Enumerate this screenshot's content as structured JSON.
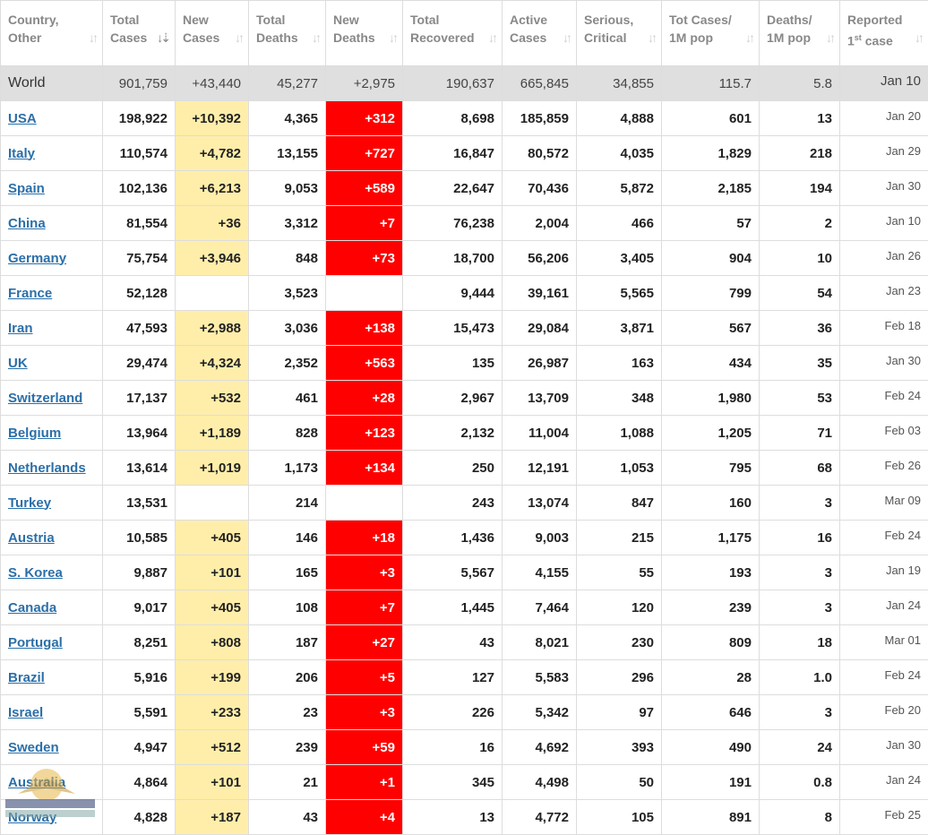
{
  "table": {
    "headers": [
      {
        "key": "country",
        "label": "Country,\nOther"
      },
      {
        "key": "total_cases",
        "label": "Total\nCases",
        "sorted": true
      },
      {
        "key": "new_cases",
        "label": "New\nCases"
      },
      {
        "key": "total_deaths",
        "label": "Total\nDeaths"
      },
      {
        "key": "new_deaths",
        "label": "New\nDeaths"
      },
      {
        "key": "total_recovered",
        "label": "Total\nRecovered"
      },
      {
        "key": "active_cases",
        "label": "Active\nCases"
      },
      {
        "key": "serious_critical",
        "label": "Serious,\nCritical"
      },
      {
        "key": "tot_cases_1m",
        "label": "Tot Cases/\n1M pop"
      },
      {
        "key": "deaths_1m",
        "label": "Deaths/\n1M pop"
      },
      {
        "key": "reported_first",
        "label": "Reported\n1st case"
      }
    ],
    "sort_icon": "sort-arrows-icon",
    "world": {
      "country": "World",
      "total_cases": "901,759",
      "new_cases": "+43,440",
      "total_deaths": "45,277",
      "new_deaths": "+2,975",
      "total_recovered": "190,637",
      "active_cases": "665,845",
      "serious_critical": "34,855",
      "tot_cases_1m": "115.7",
      "deaths_1m": "5.8",
      "reported_first": "Jan 10"
    },
    "rows": [
      {
        "country": "USA",
        "total_cases": "198,922",
        "new_cases": "+10,392",
        "total_deaths": "4,365",
        "new_deaths": "+312",
        "total_recovered": "8,698",
        "active_cases": "185,859",
        "serious_critical": "4,888",
        "tot_cases_1m": "601",
        "deaths_1m": "13",
        "reported_first": "Jan 20"
      },
      {
        "country": "Italy",
        "total_cases": "110,574",
        "new_cases": "+4,782",
        "total_deaths": "13,155",
        "new_deaths": "+727",
        "total_recovered": "16,847",
        "active_cases": "80,572",
        "serious_critical": "4,035",
        "tot_cases_1m": "1,829",
        "deaths_1m": "218",
        "reported_first": "Jan 29"
      },
      {
        "country": "Spain",
        "total_cases": "102,136",
        "new_cases": "+6,213",
        "total_deaths": "9,053",
        "new_deaths": "+589",
        "total_recovered": "22,647",
        "active_cases": "70,436",
        "serious_critical": "5,872",
        "tot_cases_1m": "2,185",
        "deaths_1m": "194",
        "reported_first": "Jan 30"
      },
      {
        "country": "China",
        "total_cases": "81,554",
        "new_cases": "+36",
        "total_deaths": "3,312",
        "new_deaths": "+7",
        "total_recovered": "76,238",
        "active_cases": "2,004",
        "serious_critical": "466",
        "tot_cases_1m": "57",
        "deaths_1m": "2",
        "reported_first": "Jan 10"
      },
      {
        "country": "Germany",
        "total_cases": "75,754",
        "new_cases": "+3,946",
        "total_deaths": "848",
        "new_deaths": "+73",
        "total_recovered": "18,700",
        "active_cases": "56,206",
        "serious_critical": "3,405",
        "tot_cases_1m": "904",
        "deaths_1m": "10",
        "reported_first": "Jan 26"
      },
      {
        "country": "France",
        "total_cases": "52,128",
        "new_cases": "",
        "total_deaths": "3,523",
        "new_deaths": "",
        "total_recovered": "9,444",
        "active_cases": "39,161",
        "serious_critical": "5,565",
        "tot_cases_1m": "799",
        "deaths_1m": "54",
        "reported_first": "Jan 23"
      },
      {
        "country": "Iran",
        "total_cases": "47,593",
        "new_cases": "+2,988",
        "total_deaths": "3,036",
        "new_deaths": "+138",
        "total_recovered": "15,473",
        "active_cases": "29,084",
        "serious_critical": "3,871",
        "tot_cases_1m": "567",
        "deaths_1m": "36",
        "reported_first": "Feb 18"
      },
      {
        "country": "UK",
        "total_cases": "29,474",
        "new_cases": "+4,324",
        "total_deaths": "2,352",
        "new_deaths": "+563",
        "total_recovered": "135",
        "active_cases": "26,987",
        "serious_critical": "163",
        "tot_cases_1m": "434",
        "deaths_1m": "35",
        "reported_first": "Jan 30"
      },
      {
        "country": "Switzerland",
        "total_cases": "17,137",
        "new_cases": "+532",
        "total_deaths": "461",
        "new_deaths": "+28",
        "total_recovered": "2,967",
        "active_cases": "13,709",
        "serious_critical": "348",
        "tot_cases_1m": "1,980",
        "deaths_1m": "53",
        "reported_first": "Feb 24"
      },
      {
        "country": "Belgium",
        "total_cases": "13,964",
        "new_cases": "+1,189",
        "total_deaths": "828",
        "new_deaths": "+123",
        "total_recovered": "2,132",
        "active_cases": "11,004",
        "serious_critical": "1,088",
        "tot_cases_1m": "1,205",
        "deaths_1m": "71",
        "reported_first": "Feb 03"
      },
      {
        "country": "Netherlands",
        "total_cases": "13,614",
        "new_cases": "+1,019",
        "total_deaths": "1,173",
        "new_deaths": "+134",
        "total_recovered": "250",
        "active_cases": "12,191",
        "serious_critical": "1,053",
        "tot_cases_1m": "795",
        "deaths_1m": "68",
        "reported_first": "Feb 26"
      },
      {
        "country": "Turkey",
        "total_cases": "13,531",
        "new_cases": "",
        "total_deaths": "214",
        "new_deaths": "",
        "total_recovered": "243",
        "active_cases": "13,074",
        "serious_critical": "847",
        "tot_cases_1m": "160",
        "deaths_1m": "3",
        "reported_first": "Mar 09"
      },
      {
        "country": "Austria",
        "total_cases": "10,585",
        "new_cases": "+405",
        "total_deaths": "146",
        "new_deaths": "+18",
        "total_recovered": "1,436",
        "active_cases": "9,003",
        "serious_critical": "215",
        "tot_cases_1m": "1,175",
        "deaths_1m": "16",
        "reported_first": "Feb 24"
      },
      {
        "country": "S. Korea",
        "total_cases": "9,887",
        "new_cases": "+101",
        "total_deaths": "165",
        "new_deaths": "+3",
        "total_recovered": "5,567",
        "active_cases": "4,155",
        "serious_critical": "55",
        "tot_cases_1m": "193",
        "deaths_1m": "3",
        "reported_first": "Jan 19"
      },
      {
        "country": "Canada",
        "total_cases": "9,017",
        "new_cases": "+405",
        "total_deaths": "108",
        "new_deaths": "+7",
        "total_recovered": "1,445",
        "active_cases": "7,464",
        "serious_critical": "120",
        "tot_cases_1m": "239",
        "deaths_1m": "3",
        "reported_first": "Jan 24"
      },
      {
        "country": "Portugal",
        "total_cases": "8,251",
        "new_cases": "+808",
        "total_deaths": "187",
        "new_deaths": "+27",
        "total_recovered": "43",
        "active_cases": "8,021",
        "serious_critical": "230",
        "tot_cases_1m": "809",
        "deaths_1m": "18",
        "reported_first": "Mar 01"
      },
      {
        "country": "Brazil",
        "total_cases": "5,916",
        "new_cases": "+199",
        "total_deaths": "206",
        "new_deaths": "+5",
        "total_recovered": "127",
        "active_cases": "5,583",
        "serious_critical": "296",
        "tot_cases_1m": "28",
        "deaths_1m": "1.0",
        "reported_first": "Feb 24"
      },
      {
        "country": "Israel",
        "total_cases": "5,591",
        "new_cases": "+233",
        "total_deaths": "23",
        "new_deaths": "+3",
        "total_recovered": "226",
        "active_cases": "5,342",
        "serious_critical": "97",
        "tot_cases_1m": "646",
        "deaths_1m": "3",
        "reported_first": "Feb 20"
      },
      {
        "country": "Sweden",
        "total_cases": "4,947",
        "new_cases": "+512",
        "total_deaths": "239",
        "new_deaths": "+59",
        "total_recovered": "16",
        "active_cases": "4,692",
        "serious_critical": "393",
        "tot_cases_1m": "490",
        "deaths_1m": "24",
        "reported_first": "Jan 30"
      },
      {
        "country": "Australia",
        "total_cases": "4,864",
        "new_cases": "+101",
        "total_deaths": "21",
        "new_deaths": "+1",
        "total_recovered": "345",
        "active_cases": "4,498",
        "serious_critical": "50",
        "tot_cases_1m": "191",
        "deaths_1m": "0.8",
        "reported_first": "Jan 24"
      },
      {
        "country": "Norway",
        "total_cases": "4,828",
        "new_cases": "+187",
        "total_deaths": "43",
        "new_deaths": "+4",
        "total_recovered": "13",
        "active_cases": "4,772",
        "serious_critical": "105",
        "tot_cases_1m": "891",
        "deaths_1m": "8",
        "reported_first": "Feb 25"
      }
    ]
  },
  "colors": {
    "new_cases_bg": "#ffeeaa",
    "new_deaths_bg": "#ff0000",
    "world_row_bg": "#dfdfdf",
    "link": "#2b6fa8"
  },
  "watermark": {
    "icon": "forum-logo-icon",
    "text": "DA ... FORUM"
  }
}
